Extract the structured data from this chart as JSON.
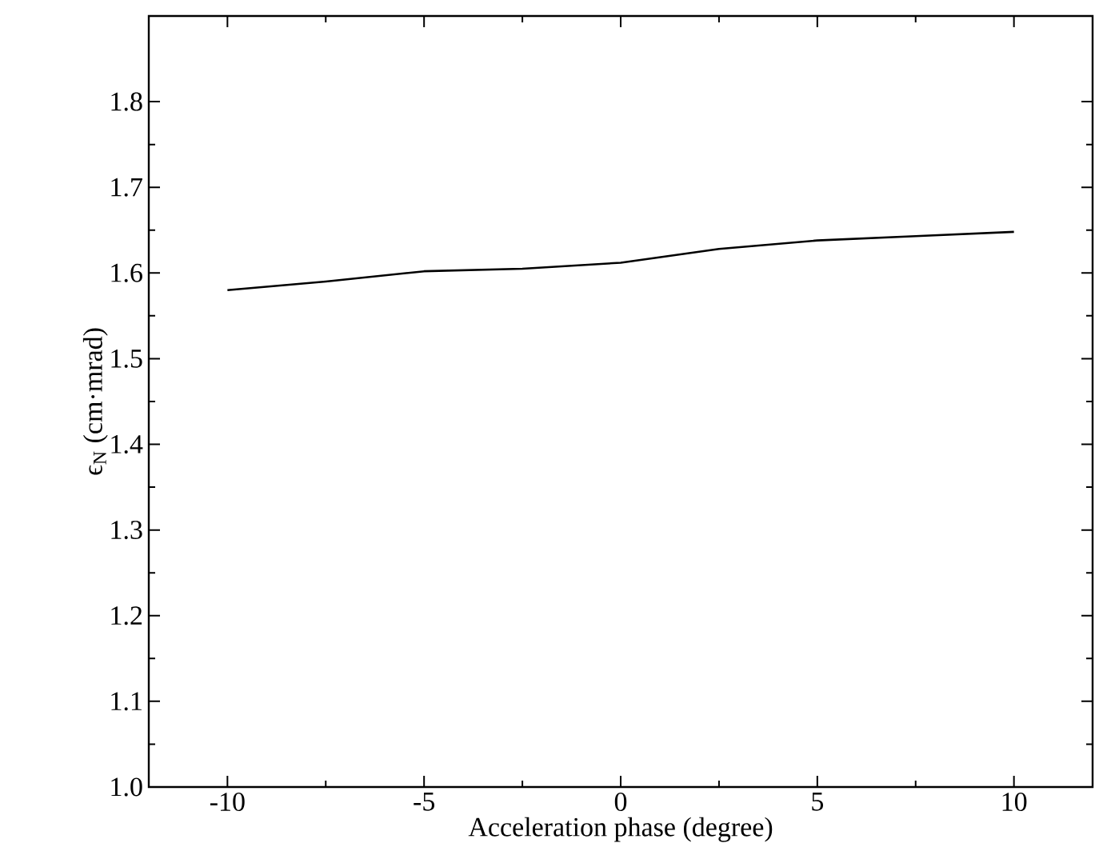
{
  "chart_data": {
    "type": "line",
    "xlabel": "Acceleration phase (degree)",
    "ylabel": "ϵ$_{N}$ (cm·mrad)",
    "x": [
      -10,
      -7.5,
      -5,
      -2.5,
      0,
      2.5,
      5,
      7.5,
      10
    ],
    "values": [
      1.58,
      1.59,
      1.602,
      1.605,
      1.612,
      1.628,
      1.638,
      1.643,
      1.648
    ],
    "color": "#000000",
    "marker": "none",
    "line_style": "solid",
    "grid": false,
    "xlim": [
      -12,
      12
    ],
    "ylim": [
      1.0,
      1.9
    ],
    "xticks": [
      -10,
      -5,
      0,
      5,
      10
    ],
    "yticks": [
      {
        "value": 1,
        "label": "1.0"
      },
      1.1,
      1.2,
      1.3,
      1.4,
      1.5,
      1.6,
      1.7,
      1.8
    ]
  }
}
